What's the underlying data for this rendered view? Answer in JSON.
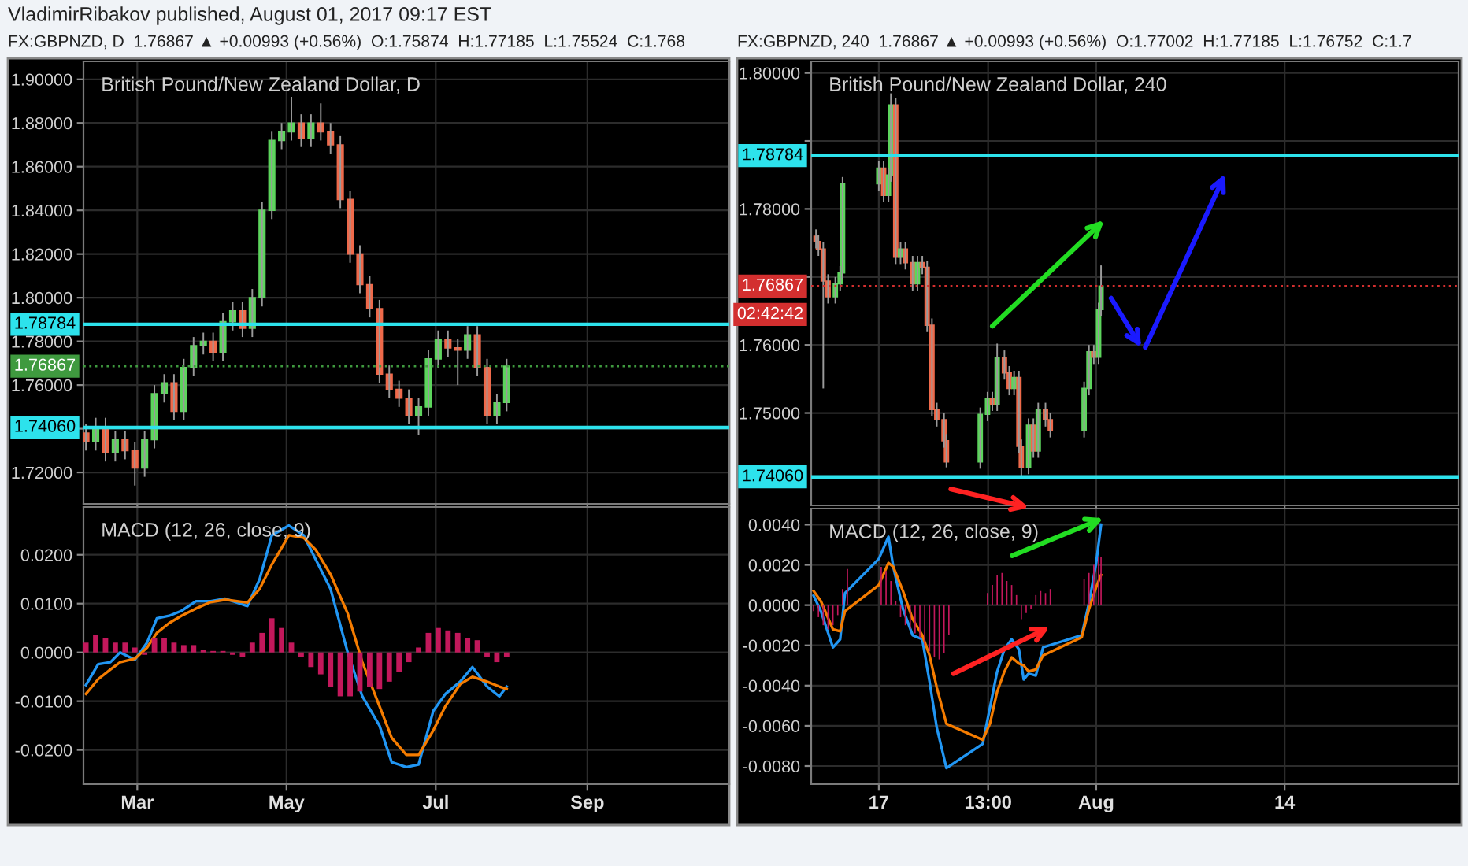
{
  "chart_data": [
    {
      "type": "candlestick",
      "title": "British Pound/New Zealand Dollar, D",
      "subtitle": "FX:GBPNZD, D  1.76867 ▲ +0.00993 (+0.56%)  O:1.75874  H:1.77185  L:1.75524  C:1.768",
      "annotations": [
        "VladimirRibakov published, August 01, 2017 09:17 EST"
      ],
      "x": [
        "2017-02-08",
        "2017-02-12",
        "2017-02-16",
        "2017-02-20",
        "2017-02-24",
        "2017-02-28",
        "2017-03-04",
        "2017-03-08",
        "2017-03-12",
        "2017-03-16",
        "2017-03-20",
        "2017-03-24",
        "2017-03-28",
        "2017-04-01",
        "2017-04-05",
        "2017-04-09",
        "2017-04-13",
        "2017-04-17",
        "2017-04-21",
        "2017-04-25",
        "2017-04-29",
        "2017-05-03",
        "2017-05-07",
        "2017-05-11",
        "2017-05-15",
        "2017-05-19",
        "2017-05-23",
        "2017-05-27",
        "2017-05-31",
        "2017-06-04",
        "2017-06-08",
        "2017-06-12",
        "2017-06-16",
        "2017-06-20",
        "2017-06-24",
        "2017-06-28",
        "2017-07-02",
        "2017-07-06",
        "2017-07-10",
        "2017-07-14",
        "2017-07-18",
        "2017-07-22",
        "2017-07-26",
        "2017-07-30"
      ],
      "ohlc": [
        [
          1.738,
          1.742,
          1.73,
          1.734
        ],
        [
          1.734,
          1.745,
          1.73,
          1.741
        ],
        [
          1.741,
          1.745,
          1.725,
          1.729
        ],
        [
          1.729,
          1.739,
          1.725,
          1.735
        ],
        [
          1.735,
          1.739,
          1.726,
          1.73
        ],
        [
          1.73,
          1.734,
          1.714,
          1.722
        ],
        [
          1.722,
          1.739,
          1.718,
          1.735
        ],
        [
          1.735,
          1.76,
          1.731,
          1.756
        ],
        [
          1.756,
          1.765,
          1.752,
          1.761
        ],
        [
          1.761,
          1.765,
          1.744,
          1.748
        ],
        [
          1.748,
          1.772,
          1.744,
          1.768
        ],
        [
          1.768,
          1.782,
          1.764,
          1.778
        ],
        [
          1.778,
          1.784,
          1.774,
          1.78
        ],
        [
          1.78,
          1.784,
          1.771,
          1.775
        ],
        [
          1.775,
          1.793,
          1.771,
          1.789
        ],
        [
          1.789,
          1.798,
          1.785,
          1.794
        ],
        [
          1.794,
          1.798,
          1.782,
          1.786
        ],
        [
          1.786,
          1.804,
          1.782,
          1.8
        ],
        [
          1.8,
          1.844,
          1.796,
          1.84
        ],
        [
          1.84,
          1.876,
          1.836,
          1.872
        ],
        [
          1.872,
          1.88,
          1.868,
          1.876
        ],
        [
          1.876,
          1.892,
          1.872,
          1.88
        ],
        [
          1.88,
          1.884,
          1.869,
          1.873
        ],
        [
          1.873,
          1.884,
          1.869,
          1.88
        ],
        [
          1.88,
          1.889,
          1.872,
          1.876
        ],
        [
          1.876,
          1.88,
          1.866,
          1.87
        ],
        [
          1.87,
          1.874,
          1.841,
          1.845
        ],
        [
          1.845,
          1.849,
          1.816,
          1.82
        ],
        [
          1.82,
          1.824,
          1.802,
          1.806
        ],
        [
          1.806,
          1.81,
          1.791,
          1.795
        ],
        [
          1.795,
          1.799,
          1.761,
          1.765
        ],
        [
          1.765,
          1.769,
          1.754,
          1.758
        ],
        [
          1.758,
          1.762,
          1.75,
          1.754
        ],
        [
          1.754,
          1.758,
          1.742,
          1.746
        ],
        [
          1.746,
          1.754,
          1.737,
          1.75
        ],
        [
          1.75,
          1.776,
          1.746,
          1.772
        ],
        [
          1.772,
          1.785,
          1.768,
          1.781
        ],
        [
          1.781,
          1.785,
          1.773,
          1.777
        ],
        [
          1.777,
          1.781,
          1.76,
          1.776
        ],
        [
          1.776,
          1.787,
          1.772,
          1.783
        ],
        [
          1.783,
          1.787,
          1.764,
          1.768
        ],
        [
          1.768,
          1.772,
          1.742,
          1.746
        ],
        [
          1.746,
          1.756,
          1.742,
          1.752
        ],
        [
          1.752,
          1.772,
          1.748,
          1.76867
        ]
      ],
      "xlim": [
        "2017-02-07",
        "2017-10-29"
      ],
      "xticks": [
        {
          "value": "2017-03-01",
          "label": null
        },
        {
          "value": "2017-05-01",
          "label": null
        },
        {
          "value": "2017-07-01",
          "label": null
        },
        {
          "value": "2017-09-01",
          "label": null
        }
      ],
      "ylim": [
        1.7056,
        1.9082
      ],
      "yticks": [
        {
          "value": 1.72,
          "label": "1.72000"
        },
        {
          "value": 1.74,
          "label": null
        },
        {
          "value": 1.76,
          "label": "1.76000"
        },
        {
          "value": 1.78,
          "label": "1.78000"
        },
        {
          "value": 1.8,
          "label": "1.80000"
        },
        {
          "value": 1.82,
          "label": "1.82000"
        },
        {
          "value": 1.84,
          "label": "1.84000"
        },
        {
          "value": 1.86,
          "label": "1.86000"
        },
        {
          "value": 1.88,
          "label": "1.88000"
        },
        {
          "value": 1.9,
          "label": "1.90000"
        }
      ],
      "ref_lines": [
        {
          "axis": "y",
          "value": 1.78784,
          "label": "1.78784",
          "color": "#2de2ec",
          "line_style": "solid"
        },
        {
          "axis": "y",
          "value": 1.7406,
          "label": "1.74060",
          "color": "#2de2ec",
          "line_style": "solid"
        },
        {
          "axis": "y",
          "value": 1.76867,
          "label": "1.76867",
          "color": "#3f9a3f",
          "line_style": "dotted"
        }
      ],
      "grid": true,
      "tick_labels": "y"
    },
    {
      "type": "line",
      "title": "MACD (12, 26, close, 9)",
      "series": [
        {
          "type": "bar",
          "color": "#c2185b",
          "x": [
            "2017-02-08",
            "2017-02-12",
            "2017-02-16",
            "2017-02-20",
            "2017-02-24",
            "2017-02-28",
            "2017-03-04",
            "2017-03-08",
            "2017-03-12",
            "2017-03-16",
            "2017-03-20",
            "2017-03-24",
            "2017-03-28",
            "2017-04-01",
            "2017-04-05",
            "2017-04-09",
            "2017-04-13",
            "2017-04-17",
            "2017-04-21",
            "2017-04-25",
            "2017-04-29",
            "2017-05-03",
            "2017-05-07",
            "2017-05-11",
            "2017-05-15",
            "2017-05-19",
            "2017-05-23",
            "2017-05-27",
            "2017-05-31",
            "2017-06-04",
            "2017-06-08",
            "2017-06-12",
            "2017-06-16",
            "2017-06-20",
            "2017-06-24",
            "2017-06-28",
            "2017-07-02",
            "2017-07-06",
            "2017-07-10",
            "2017-07-14",
            "2017-07-18",
            "2017-07-22",
            "2017-07-26",
            "2017-07-30"
          ],
          "values": [
            0.002,
            0.0035,
            0.003,
            0.002,
            0.002,
            0.001,
            -0.0005,
            0.003,
            0.003,
            0.002,
            0.0015,
            0.0015,
            0.0005,
            0.0003,
            0.0003,
            -0.0005,
            -0.001,
            0.002,
            0.004,
            0.007,
            0.005,
            0.002,
            -0.001,
            -0.003,
            -0.0045,
            -0.007,
            -0.009,
            -0.009,
            -0.008,
            -0.007,
            -0.0075,
            -0.006,
            -0.004,
            -0.002,
            0.001,
            0.004,
            0.005,
            0.0045,
            0.004,
            0.003,
            0.0025,
            -0.001,
            -0.002,
            -0.001
          ]
        },
        {
          "type": "line",
          "color": "#2196f3",
          "x": [
            "2017-02-08",
            "2017-02-13",
            "2017-02-18",
            "2017-02-22",
            "2017-02-28",
            "2017-03-05",
            "2017-03-09",
            "2017-03-14",
            "2017-03-19",
            "2017-03-25",
            "2017-03-31",
            "2017-04-06",
            "2017-04-15",
            "2017-04-20",
            "2017-04-25",
            "2017-05-02",
            "2017-05-08",
            "2017-05-13",
            "2017-05-19",
            "2017-05-26",
            "2017-06-01",
            "2017-06-08",
            "2017-06-13",
            "2017-06-19",
            "2017-06-24",
            "2017-06-30",
            "2017-07-05",
            "2017-07-11",
            "2017-07-16",
            "2017-07-22",
            "2017-07-27",
            "2017-07-30"
          ],
          "values": [
            -0.0067,
            -0.0024,
            -0.002,
            0.0,
            -0.0015,
            0.002,
            0.007,
            0.0075,
            0.0085,
            0.0105,
            0.0105,
            0.011,
            0.0095,
            0.015,
            0.024,
            0.026,
            0.024,
            0.019,
            0.013,
            0.0,
            -0.009,
            -0.015,
            -0.0225,
            -0.0235,
            -0.023,
            -0.012,
            -0.0085,
            -0.006,
            -0.003,
            -0.007,
            -0.009,
            -0.007
          ]
        },
        {
          "type": "line",
          "color": "#f57c00",
          "x": [
            "2017-02-08",
            "2017-02-13",
            "2017-02-18",
            "2017-02-22",
            "2017-02-28",
            "2017-03-05",
            "2017-03-09",
            "2017-03-14",
            "2017-03-19",
            "2017-03-25",
            "2017-03-31",
            "2017-04-06",
            "2017-04-15",
            "2017-04-20",
            "2017-04-25",
            "2017-05-02",
            "2017-05-08",
            "2017-05-13",
            "2017-05-19",
            "2017-05-26",
            "2017-06-01",
            "2017-06-08",
            "2017-06-13",
            "2017-06-19",
            "2017-06-24",
            "2017-06-30",
            "2017-07-05",
            "2017-07-11",
            "2017-07-16",
            "2017-07-22",
            "2017-07-27",
            "2017-07-30"
          ],
          "values": [
            -0.0085,
            -0.0055,
            -0.0035,
            -0.002,
            -0.0013,
            0.001,
            0.004,
            0.006,
            0.0075,
            0.009,
            0.0103,
            0.0108,
            0.0102,
            0.013,
            0.018,
            0.024,
            0.0235,
            0.021,
            0.016,
            0.008,
            -0.002,
            -0.011,
            -0.0175,
            -0.021,
            -0.021,
            -0.016,
            -0.011,
            -0.0065,
            -0.005,
            -0.006,
            -0.007,
            -0.0075
          ]
        }
      ],
      "xlim": [
        "2017-02-07",
        "2017-10-29"
      ],
      "xticks": [
        {
          "value": "2017-03-01",
          "label": "Mar"
        },
        {
          "value": "2017-05-01",
          "label": "May"
        },
        {
          "value": "2017-07-01",
          "label": "Jul"
        },
        {
          "value": "2017-09-01",
          "label": "Sep"
        }
      ],
      "ylim": [
        -0.027,
        0.0298
      ],
      "yticks": [
        {
          "value": -0.02,
          "label": "-0.0200"
        },
        {
          "value": -0.01,
          "label": "-0.0100"
        },
        {
          "value": 0,
          "label": "0.0000"
        },
        {
          "value": 0.01,
          "label": "0.0100"
        },
        {
          "value": 0.02,
          "label": "0.0200"
        }
      ],
      "grid": true
    },
    {
      "type": "candlestick",
      "title": "British Pound/New Zealand Dollar, 240",
      "subtitle": "FX:GBPNZD, 240  1.76867 ▲ +0.00993 (+0.56%)  O:1.77002  H:1.77185  L:1.76752  C:1.7",
      "annotations": [
        "02:42:42"
      ],
      "x": [
        "2017-07-12T16:00",
        "2017-07-12T20:00",
        "2017-07-13T04:00",
        "2017-07-13T12:00",
        "2017-07-14T00:00",
        "2017-07-14T08:00",
        "2017-07-14T12:00",
        "2017-07-17T00:00",
        "2017-07-17T08:00",
        "2017-07-17T16:00",
        "2017-07-17T20:00",
        "2017-07-18T04:00",
        "2017-07-18T12:00",
        "2017-07-18T20:00",
        "2017-07-19T08:00",
        "2017-07-19T16:00",
        "2017-07-20T00:00",
        "2017-07-20T08:00",
        "2017-07-20T16:00",
        "2017-07-21T00:00",
        "2017-07-21T12:00",
        "2017-07-21T16:00",
        "2017-07-24T00:00",
        "2017-07-24T12:00",
        "2017-07-24T20:00",
        "2017-07-25T04:00",
        "2017-07-25T16:00",
        "2017-07-26T00:00",
        "2017-07-26T08:00",
        "2017-07-26T16:00",
        "2017-07-26T20:00",
        "2017-07-27T08:00",
        "2017-07-27T16:00",
        "2017-07-28T00:00",
        "2017-07-28T12:00",
        "2017-07-28T20:00",
        "2017-07-31T04:00",
        "2017-07-31T12:00",
        "2017-07-31T20:00",
        "2017-08-01T04:00",
        "2017-08-01T08:00"
      ],
      "ohlc": [
        [
          1.776,
          1.777,
          1.7742,
          1.7752
        ],
        [
          1.7752,
          1.7762,
          1.7731,
          1.7741
        ],
        [
          1.7741,
          1.7751,
          1.7536,
          1.7694
        ],
        [
          1.7694,
          1.7704,
          1.7661,
          1.7671
        ],
        [
          1.7671,
          1.77,
          1.7661,
          1.769
        ],
        [
          1.769,
          1.7716,
          1.768,
          1.7706
        ],
        [
          1.7706,
          1.7847,
          1.7696,
          1.7837
        ],
        [
          1.7837,
          1.787,
          1.7827,
          1.786
        ],
        [
          1.786,
          1.787,
          1.781,
          1.782
        ],
        [
          1.782,
          1.786,
          1.781,
          1.785
        ],
        [
          1.785,
          1.797,
          1.784,
          1.7953
        ],
        [
          1.7953,
          1.7963,
          1.7719,
          1.7729
        ],
        [
          1.7729,
          1.7751,
          1.7719,
          1.7741
        ],
        [
          1.7741,
          1.7751,
          1.7711,
          1.7721
        ],
        [
          1.7721,
          1.7731,
          1.768,
          1.769
        ],
        [
          1.769,
          1.7731,
          1.768,
          1.7721
        ],
        [
          1.7721,
          1.7731,
          1.7704,
          1.7714
        ],
        [
          1.7714,
          1.7724,
          1.7619,
          1.7629
        ],
        [
          1.7629,
          1.7639,
          1.7495,
          1.7505
        ],
        [
          1.7505,
          1.7515,
          1.748,
          1.749
        ],
        [
          1.749,
          1.75,
          1.7449,
          1.7459
        ],
        [
          1.7459,
          1.7469,
          1.742,
          1.7428
        ],
        [
          1.7428,
          1.7508,
          1.7418,
          1.7498
        ],
        [
          1.7498,
          1.7531,
          1.7488,
          1.7521
        ],
        [
          1.7521,
          1.7531,
          1.7503,
          1.7513
        ],
        [
          1.7513,
          1.7602,
          1.7503,
          1.7582
        ],
        [
          1.7582,
          1.7592,
          1.7549,
          1.7559
        ],
        [
          1.7559,
          1.7569,
          1.7526,
          1.7536
        ],
        [
          1.7536,
          1.7562,
          1.7526,
          1.7552
        ],
        [
          1.7552,
          1.7562,
          1.7441,
          1.7451
        ],
        [
          1.7451,
          1.7461,
          1.7403,
          1.742
        ],
        [
          1.742,
          1.7492,
          1.741,
          1.7482
        ],
        [
          1.7482,
          1.7492,
          1.7434,
          1.7444
        ],
        [
          1.7444,
          1.7515,
          1.7434,
          1.7505
        ],
        [
          1.7505,
          1.7515,
          1.748,
          1.749
        ],
        [
          1.749,
          1.75,
          1.7464,
          1.7474
        ],
        [
          1.7474,
          1.7546,
          1.7464,
          1.7536
        ],
        [
          1.7536,
          1.76,
          1.7526,
          1.759
        ],
        [
          1.759,
          1.76,
          1.7572,
          1.7582
        ],
        [
          1.7582,
          1.7662,
          1.7572,
          1.7652
        ],
        [
          1.7652,
          1.7717,
          1.7642,
          1.76867
        ]
      ],
      "xlim": [
        "2017-07-12T08:00",
        "2017-08-26T00:00"
      ],
      "xticks": [
        {
          "value": "2017-07-17",
          "label": null
        },
        {
          "value": "2017-07-24T13:00",
          "label": null
        },
        {
          "value": "2017-08-01",
          "label": null
        },
        {
          "value": "2017-08-14",
          "label": null
        }
      ],
      "ylim": [
        1.7364,
        1.8017
      ],
      "yticks": [
        {
          "value": 1.75,
          "label": "1.75000"
        },
        {
          "value": 1.76,
          "label": "1.76000"
        },
        {
          "value": 1.77,
          "label": null
        },
        {
          "value": 1.78,
          "label": "1.78000"
        },
        {
          "value": 1.79,
          "label": null
        },
        {
          "value": 1.8,
          "label": "1.80000"
        }
      ],
      "ref_lines": [
        {
          "axis": "y",
          "value": 1.78784,
          "label": "1.78784",
          "color": "#2de2ec",
          "line_style": "solid"
        },
        {
          "axis": "y",
          "value": 1.7406,
          "label": "1.74060",
          "color": "#2de2ec",
          "line_style": "solid"
        },
        {
          "axis": "y",
          "value": 1.76867,
          "label": "1.76867",
          "color": "#d32f2f",
          "line_style": "dotted"
        }
      ],
      "grid": true,
      "tick_labels": "y"
    },
    {
      "type": "line",
      "title": "MACD (12, 26, close, 9)",
      "series": [
        {
          "type": "bar",
          "color": "#c2185b",
          "x": [
            "2017-07-12T12:00",
            "2017-07-12T20:00",
            "2017-07-13T04:00",
            "2017-07-13T12:00",
            "2017-07-13T20:00",
            "2017-07-14T04:00",
            "2017-07-14T12:00",
            "2017-07-14T20:00",
            "2017-07-17T04:00",
            "2017-07-17T12:00",
            "2017-07-17T20:00",
            "2017-07-18T04:00",
            "2017-07-18T12:00",
            "2017-07-18T20:00",
            "2017-07-19T04:00",
            "2017-07-19T12:00",
            "2017-07-19T20:00",
            "2017-07-20T04:00",
            "2017-07-20T12:00",
            "2017-07-20T20:00",
            "2017-07-21T04:00",
            "2017-07-21T12:00",
            "2017-07-21T20:00",
            "2017-07-24T04:00",
            "2017-07-24T12:00",
            "2017-07-24T20:00",
            "2017-07-25T04:00",
            "2017-07-25T12:00",
            "2017-07-25T20:00",
            "2017-07-26T04:00",
            "2017-07-26T12:00",
            "2017-07-26T20:00",
            "2017-07-27T04:00",
            "2017-07-27T12:00",
            "2017-07-27T20:00",
            "2017-07-28T04:00",
            "2017-07-28T12:00",
            "2017-07-28T20:00",
            "2017-07-31T04:00",
            "2017-07-31T12:00",
            "2017-07-31T20:00",
            "2017-08-01T04:00",
            "2017-08-01T08:00"
          ],
          "values": [
            -0.0003,
            -0.0006,
            -0.001,
            -0.0012,
            -0.001,
            -0.0005,
            0.0008,
            0.0018,
            0.0019,
            0.0017,
            0.0012,
            0.0002,
            -0.0006,
            -0.001,
            -0.0012,
            -0.0014,
            -0.0016,
            -0.002,
            -0.0023,
            -0.0026,
            -0.0027,
            -0.0024,
            -0.0015,
            0.0,
            0.0006,
            0.001,
            0.0015,
            0.0016,
            0.0012,
            0.001,
            0.0005,
            -0.0007,
            -0.0004,
            -0.0002,
            0.0005,
            0.0007,
            0.0006,
            0.0008,
            0.0013,
            0.0016,
            0.002,
            0.0024,
            0.0024
          ]
        },
        {
          "type": "line",
          "color": "#2196f3",
          "x": [
            "2017-07-12T12:00",
            "2017-07-13T00:00",
            "2017-07-13T20:00",
            "2017-07-14T08:00",
            "2017-07-14T16:00",
            "2017-07-17T00:00",
            "2017-07-17T16:00",
            "2017-07-18T00:00",
            "2017-07-18T16:00",
            "2017-07-19T08:00",
            "2017-07-20T00:00",
            "2017-07-20T12:00",
            "2017-07-21T00:00",
            "2017-07-21T16:00",
            "2017-07-24T04:00",
            "2017-07-24T16:00",
            "2017-07-25T04:00",
            "2017-07-25T16:00",
            "2017-07-26T04:00",
            "2017-07-26T16:00",
            "2017-07-27T00:00",
            "2017-07-27T08:00",
            "2017-07-27T20:00",
            "2017-07-28T08:00",
            "2017-07-31T00:00",
            "2017-07-31T12:00",
            "2017-08-01T00:00",
            "2017-08-01T08:00"
          ],
          "values": [
            0.00047,
            -0.0003,
            -0.0021,
            -0.0017,
            0.0006,
            0.0023,
            0.0034,
            0.0019,
            -0.0002,
            -0.0015,
            -0.0017,
            -0.0038,
            -0.0061,
            -0.0081,
            -0.0069,
            -0.0051,
            -0.0033,
            -0.0022,
            -0.0017,
            -0.0022,
            -0.0037,
            -0.0034,
            -0.0035,
            -0.0021,
            -0.0015,
            0.0001,
            0.0021,
            0.004
          ]
        },
        {
          "type": "line",
          "color": "#f57c00",
          "x": [
            "2017-07-12T12:00",
            "2017-07-13T00:00",
            "2017-07-13T20:00",
            "2017-07-14T08:00",
            "2017-07-14T16:00",
            "2017-07-17T00:00",
            "2017-07-17T16:00",
            "2017-07-18T00:00",
            "2017-07-18T16:00",
            "2017-07-19T08:00",
            "2017-07-20T00:00",
            "2017-07-20T12:00",
            "2017-07-21T00:00",
            "2017-07-21T16:00",
            "2017-07-24T04:00",
            "2017-07-24T16:00",
            "2017-07-25T04:00",
            "2017-07-25T16:00",
            "2017-07-26T04:00",
            "2017-07-26T16:00",
            "2017-07-27T00:00",
            "2017-07-27T08:00",
            "2017-07-27T20:00",
            "2017-07-28T08:00",
            "2017-07-31T00:00",
            "2017-07-31T12:00",
            "2017-08-01T00:00",
            "2017-08-01T08:00"
          ],
          "values": [
            0.0007,
            0.0002,
            -0.0012,
            -0.0013,
            -0.0003,
            0.001,
            0.0021,
            0.0019,
            0.0007,
            -0.0007,
            -0.0015,
            -0.0025,
            -0.0041,
            -0.0059,
            -0.0067,
            -0.0059,
            -0.0043,
            -0.0033,
            -0.0026,
            -0.0029,
            -0.003,
            -0.0033,
            -0.0032,
            -0.0025,
            -0.0016,
            -0.0002,
            0.0009,
            0.0015
          ]
        }
      ],
      "xlim": [
        "2017-07-12T08:00",
        "2017-08-26T00:00"
      ],
      "xticks": [
        {
          "value": "2017-07-17",
          "label": "17"
        },
        {
          "value": "2017-07-24T13:00",
          "label": "13:00"
        },
        {
          "value": "2017-08-01",
          "label": "Aug"
        },
        {
          "value": "2017-08-14",
          "label": "14"
        }
      ],
      "ylim": [
        -0.0089,
        0.0048
      ],
      "yticks": [
        {
          "value": -0.008,
          "label": "-0.0080"
        },
        {
          "value": -0.006,
          "label": "-0.0060"
        },
        {
          "value": -0.004,
          "label": "-0.0040"
        },
        {
          "value": -0.002,
          "label": "-0.0020"
        },
        {
          "value": 0,
          "label": "0.0000"
        },
        {
          "value": 0.002,
          "label": "0.0020"
        },
        {
          "value": 0.004,
          "label": "0.0040"
        }
      ],
      "grid": true
    }
  ]
}
